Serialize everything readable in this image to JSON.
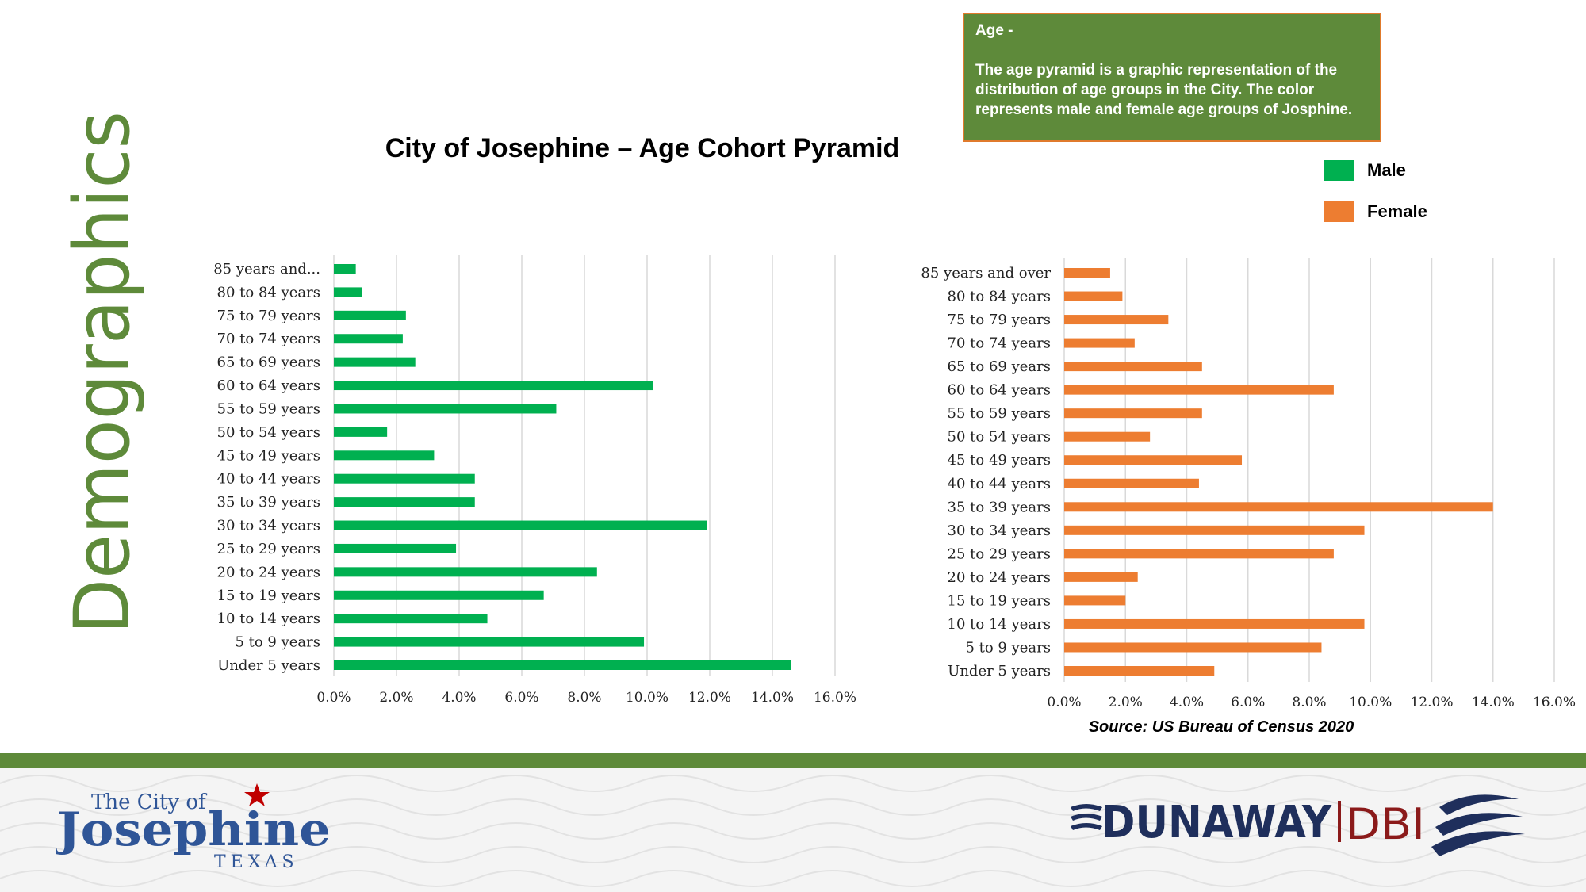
{
  "page": {
    "vertical_title": "Demographics",
    "chart_title": "City of Josephine – Age Cohort Pyramid",
    "source": "Source: US Bureau of Census 2020"
  },
  "info_box": {
    "heading": "Age  -",
    "body": "The age pyramid is a graphic representation of the distribution of age groups in the City. The color represents male and female age groups of Josphine."
  },
  "legend": {
    "items": [
      {
        "label": "Male",
        "color": "#00b050"
      },
      {
        "label": "Female",
        "color": "#ed7d31"
      }
    ]
  },
  "colors": {
    "accent_green": "#5e8a3a",
    "male": "#00b050",
    "female": "#ed7d31",
    "logo_blue": "#2f5597",
    "logo_red": "#c00000",
    "firm_navy": "#1f2f5c",
    "firm_red": "#8b1a1a"
  },
  "logos": {
    "city": {
      "line1": "The City of",
      "line2": "Josephine",
      "line3": "TEXAS"
    },
    "firm": {
      "name": "DUNAWAY",
      "suffix": "DBI"
    }
  },
  "chart_data": [
    {
      "type": "bar",
      "orientation": "horizontal",
      "series_name": "Male",
      "color": "#00b050",
      "categories": [
        "Under 5 years",
        "5 to 9 years",
        "10 to 14 years",
        "15 to 19 years",
        "20 to 24 years",
        "25 to 29 years",
        "30 to 34 years",
        "35 to 39 years",
        "40 to 44 years",
        "45 to 49 years",
        "50 to 54 years",
        "55 to 59 years",
        "60 to 64 years",
        "65 to 69 years",
        "70 to 74 years",
        "75 to 79 years",
        "80 to 84 years",
        "85 years and..."
      ],
      "values": [
        14.6,
        9.9,
        4.9,
        6.7,
        8.4,
        3.9,
        11.9,
        4.5,
        4.5,
        3.2,
        1.7,
        7.1,
        10.2,
        2.6,
        2.2,
        2.3,
        0.9,
        0.7
      ],
      "xlim": [
        0,
        16
      ],
      "xticks": [
        "0.0%",
        "2.0%",
        "4.0%",
        "6.0%",
        "8.0%",
        "10.0%",
        "12.0%",
        "14.0%",
        "16.0%"
      ],
      "grid": true
    },
    {
      "type": "bar",
      "orientation": "horizontal",
      "series_name": "Female",
      "color": "#ed7d31",
      "categories": [
        "Under 5 years",
        "5 to 9 years",
        "10 to 14 years",
        "15 to 19 years",
        "20 to 24 years",
        "25 to 29 years",
        "30 to 34 years",
        "35 to 39 years",
        "40 to 44 years",
        "45 to 49 years",
        "50 to 54 years",
        "55 to 59 years",
        "60 to 64 years",
        "65 to 69 years",
        "70 to 74 years",
        "75 to 79 years",
        "80 to 84 years",
        "85 years and over"
      ],
      "values": [
        4.9,
        8.4,
        9.8,
        2.0,
        2.4,
        8.8,
        9.8,
        14.0,
        4.4,
        5.8,
        2.8,
        4.5,
        8.8,
        4.5,
        2.3,
        3.4,
        1.9,
        1.5
      ],
      "xlim": [
        0,
        16
      ],
      "xticks": [
        "0.0%",
        "2.0%",
        "4.0%",
        "6.0%",
        "8.0%",
        "10.0%",
        "12.0%",
        "14.0%",
        "16.0%"
      ],
      "grid": true
    }
  ]
}
